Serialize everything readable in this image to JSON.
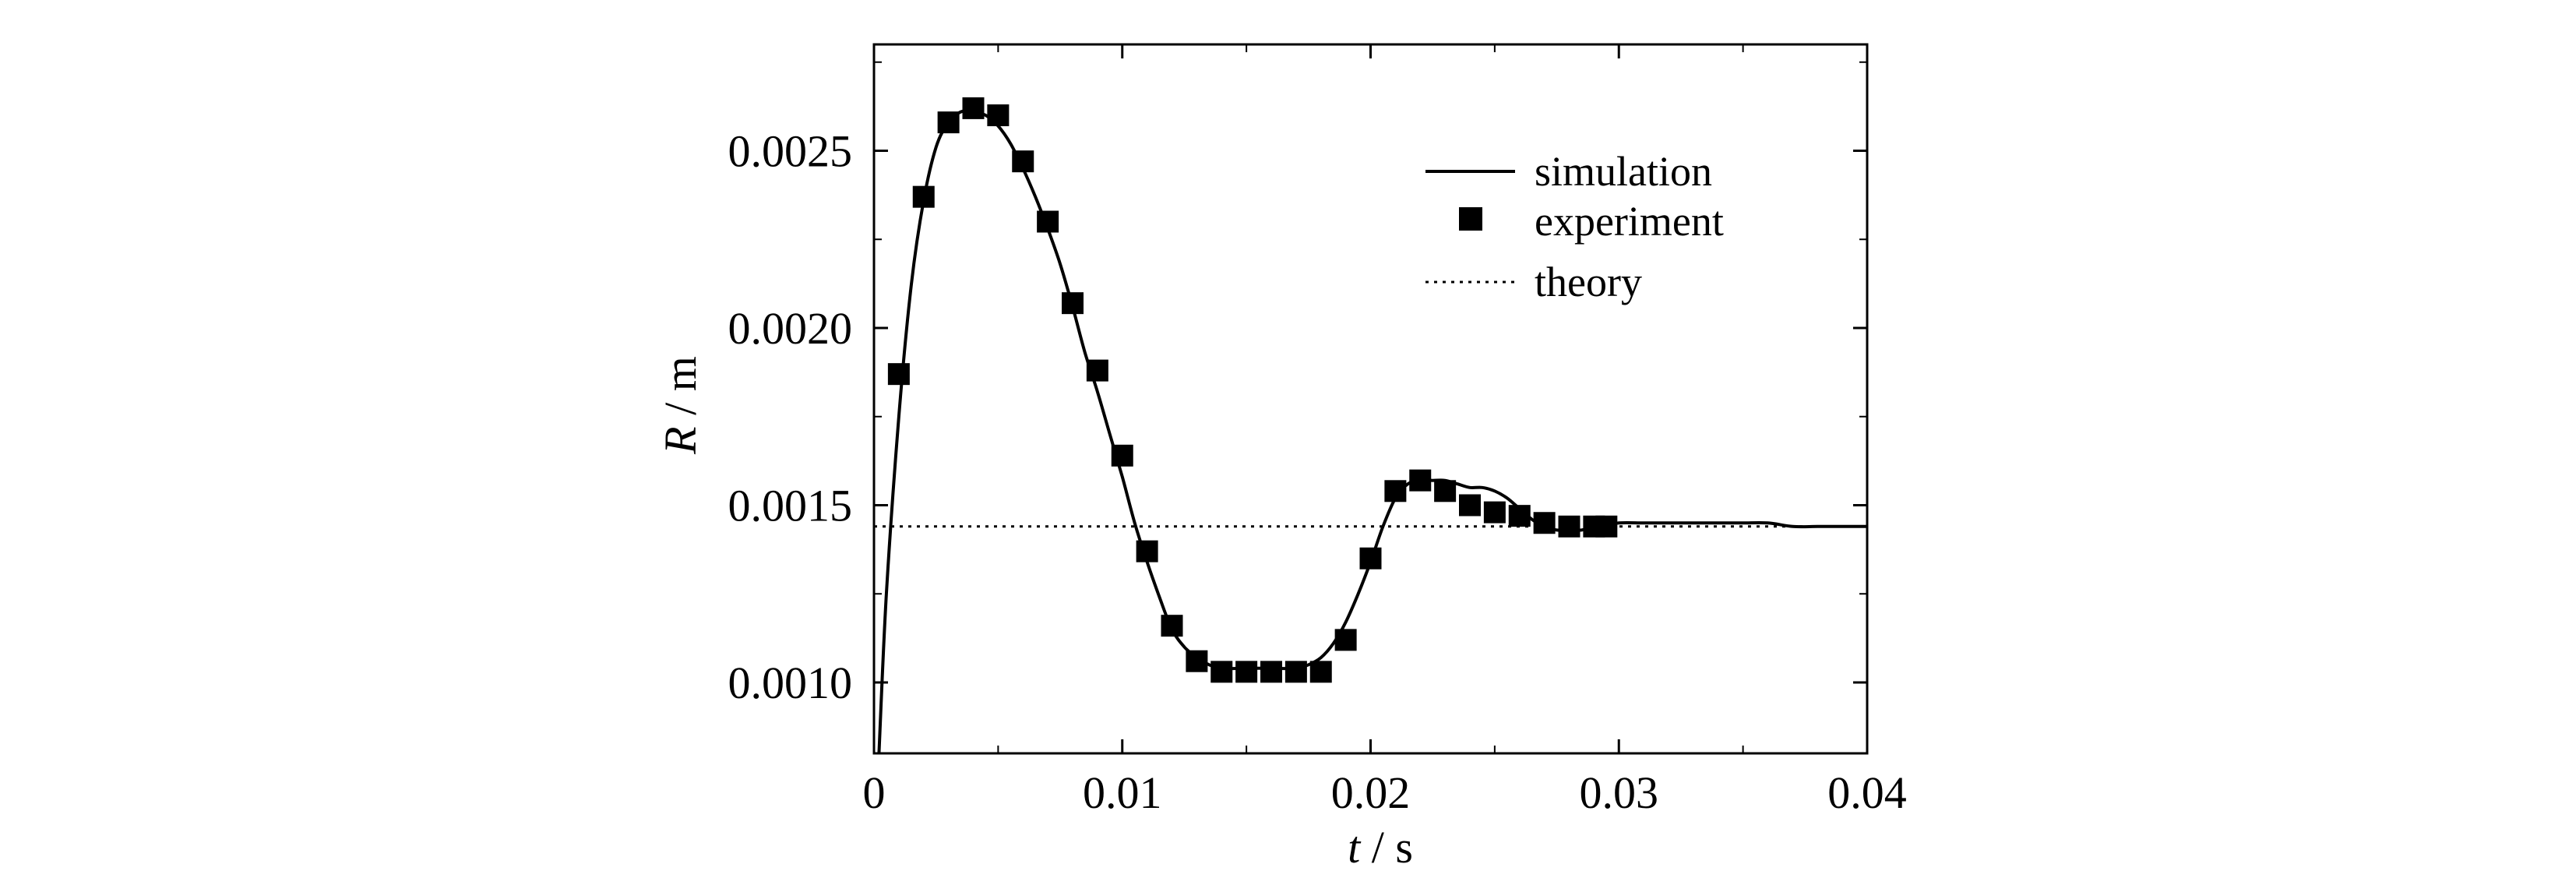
{
  "chart_data": {
    "type": "line",
    "xlabel": {
      "var": "t",
      "unit": " / s"
    },
    "ylabel": {
      "var": "R",
      "unit": " / m"
    },
    "xlim": [
      0,
      0.04
    ],
    "ylim": [
      0.0008,
      0.0028
    ],
    "xticks": [
      0,
      0.01,
      0.02,
      0.03,
      0.04
    ],
    "xtick_labels": [
      "0",
      "0.01",
      "0.02",
      "0.03",
      "0.04"
    ],
    "yticks": [
      0.001,
      0.0015,
      0.002,
      0.0025
    ],
    "ytick_labels": [
      "0.0010",
      "0.0015",
      "0.0020",
      "0.0025"
    ],
    "grid": false,
    "legend_position": "top-right",
    "series": [
      {
        "name": "simulation",
        "style": "solid",
        "x": [
          0.0002,
          0.0005,
          0.001,
          0.0015,
          0.002,
          0.0025,
          0.003,
          0.0035,
          0.004,
          0.0045,
          0.005,
          0.0055,
          0.006,
          0.0065,
          0.007,
          0.0075,
          0.008,
          0.0085,
          0.009,
          0.0095,
          0.01,
          0.0105,
          0.011,
          0.0115,
          0.012,
          0.0125,
          0.013,
          0.0135,
          0.014,
          0.015,
          0.016,
          0.017,
          0.0175,
          0.018,
          0.0185,
          0.019,
          0.0195,
          0.02,
          0.0205,
          0.021,
          0.0215,
          0.022,
          0.0225,
          0.023,
          0.0235,
          0.024,
          0.0245,
          0.025,
          0.0255,
          0.026,
          0.0265,
          0.027,
          0.0275,
          0.028,
          0.0285,
          0.029,
          0.0295,
          0.03,
          0.031,
          0.032,
          0.033,
          0.034,
          0.035,
          0.036,
          0.037,
          0.038,
          0.039,
          0.04
        ],
        "y": [
          0.0008,
          0.00125,
          0.00175,
          0.00212,
          0.00236,
          0.00251,
          0.00258,
          0.00261,
          0.00261,
          0.0026,
          0.00257,
          0.00252,
          0.00245,
          0.00237,
          0.00228,
          0.00218,
          0.00206,
          0.00193,
          0.00182,
          0.0017,
          0.00158,
          0.00145,
          0.00134,
          0.00124,
          0.00115,
          0.0011,
          0.00107,
          0.00105,
          0.00104,
          0.00104,
          0.00104,
          0.00104,
          0.00105,
          0.00107,
          0.00111,
          0.00117,
          0.00125,
          0.00134,
          0.00144,
          0.00152,
          0.00156,
          0.00157,
          0.00157,
          0.00157,
          0.00156,
          0.00155,
          0.00155,
          0.00154,
          0.00152,
          0.00149,
          0.00146,
          0.00144,
          0.00143,
          0.00143,
          0.00143,
          0.00144,
          0.00144,
          0.00145,
          0.00145,
          0.00145,
          0.00145,
          0.00145,
          0.00145,
          0.00145,
          0.00144,
          0.00144,
          0.00144,
          0.00144
        ]
      },
      {
        "name": "experiment",
        "style": "markers",
        "x": [
          0.001,
          0.002,
          0.003,
          0.004,
          0.005,
          0.006,
          0.007,
          0.008,
          0.009,
          0.01,
          0.011,
          0.012,
          0.013,
          0.014,
          0.015,
          0.016,
          0.017,
          0.018,
          0.019,
          0.02,
          0.021,
          0.022,
          0.023,
          0.024,
          0.025,
          0.026,
          0.027,
          0.028,
          0.029,
          0.0295
        ],
        "y": [
          0.00187,
          0.00237,
          0.00258,
          0.00262,
          0.0026,
          0.00247,
          0.0023,
          0.00207,
          0.00188,
          0.00164,
          0.00137,
          0.00116,
          0.00106,
          0.00103,
          0.00103,
          0.00103,
          0.00103,
          0.00103,
          0.00112,
          0.00135,
          0.00154,
          0.00157,
          0.00154,
          0.0015,
          0.00148,
          0.00147,
          0.00145,
          0.00144,
          0.00144,
          0.00144
        ]
      },
      {
        "name": "theory",
        "style": "dotted",
        "x": [
          0,
          0.04
        ],
        "y": [
          0.00144,
          0.00144
        ]
      }
    ]
  }
}
